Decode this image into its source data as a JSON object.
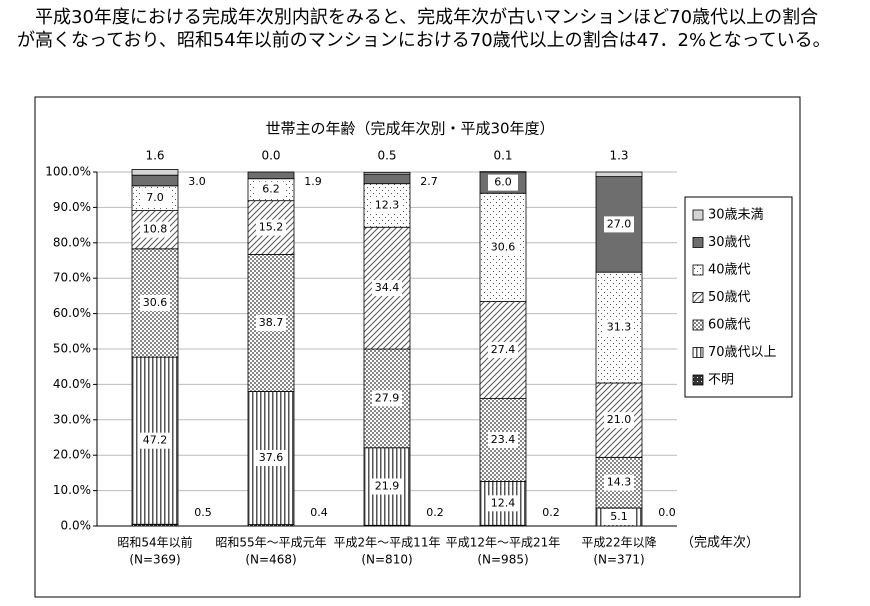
{
  "intro_text": "平成30年度における完成年次別内訳をみると、完成年次が古いマンションほど70歳代以上の割合が高くなっており、昭和54年以前のマンションにおける70歳代以上の割合は47．2%となっている。",
  "chart_data": {
    "type": "stacked_bar",
    "title": "世帯主の年齢（完成年次別・平成30年度）",
    "x_label": "（完成年次）",
    "categories": [
      "昭和54年以前",
      "昭和55年～平成元年",
      "平成2年～平成11年",
      "平成12年～平成21年",
      "平成22年以降"
    ],
    "category_counts": [
      "(N=369)",
      "(N=468)",
      "(N=810)",
      "(N=985)",
      "(N=371)"
    ],
    "ylim": [
      0,
      100
    ],
    "yticks": [
      {
        "value": 0,
        "label": "0.0%"
      },
      {
        "value": 10,
        "label": "10.0%"
      },
      {
        "value": 20,
        "label": "20.0%"
      },
      {
        "value": 30,
        "label": "30.0%"
      },
      {
        "value": 40,
        "label": "40.0%"
      },
      {
        "value": 50,
        "label": "50.0%"
      },
      {
        "value": 60,
        "label": "60.0%"
      },
      {
        "value": 70,
        "label": "70.0%"
      },
      {
        "value": 80,
        "label": "80.0%"
      },
      {
        "value": 90,
        "label": "90.0%"
      },
      {
        "value": 100,
        "label": "100.0%"
      }
    ],
    "grid": true,
    "legend_position": "right",
    "series": [
      {
        "name": "不明",
        "color": "#333333",
        "pattern": "dense",
        "values": [
          0.5,
          0.4,
          0.2,
          0.2,
          0.0
        ],
        "value_labels": [
          "0.5",
          "0.4",
          "0.2",
          "0.2",
          "0.0"
        ]
      },
      {
        "name": "70歳代以上",
        "color": "#555555",
        "pattern": "vertical",
        "values": [
          47.2,
          37.6,
          21.9,
          12.4,
          5.1
        ],
        "value_labels": [
          "47.2",
          "37.6",
          "21.9",
          "12.4",
          "5.1"
        ]
      },
      {
        "name": "60歳代",
        "color": "#888888",
        "pattern": "crosshatch",
        "values": [
          30.6,
          38.7,
          27.9,
          23.4,
          14.3
        ],
        "value_labels": [
          "30.6",
          "38.7",
          "27.9",
          "23.4",
          "14.3"
        ]
      },
      {
        "name": "50歳代",
        "color": "#555555",
        "pattern": "diagonal",
        "values": [
          10.8,
          15.2,
          34.4,
          27.4,
          21.0
        ],
        "value_labels": [
          "10.8",
          "15.2",
          "34.4",
          "27.4",
          "21.0"
        ]
      },
      {
        "name": "40歳代",
        "color": "#555555",
        "pattern": "dots",
        "values": [
          7.0,
          6.2,
          12.3,
          30.6,
          31.3
        ],
        "value_labels": [
          "7.0",
          "6.2",
          "12.3",
          "30.6",
          "31.3"
        ]
      },
      {
        "name": "30歳代",
        "color": "#6e6e6e",
        "pattern": "solid",
        "values": [
          3.0,
          1.9,
          2.7,
          6.0,
          27.0
        ],
        "value_labels": [
          "3.0",
          "1.9",
          "2.7",
          "6.0",
          "27.0"
        ]
      },
      {
        "name": "30歳未満",
        "color": "#d4d4d4",
        "pattern": "solid",
        "values": [
          1.6,
          0.0,
          0.5,
          0.1,
          1.3
        ],
        "value_labels": [
          "1.6",
          "0.0",
          "0.5",
          "0.1",
          "1.3"
        ]
      }
    ]
  }
}
